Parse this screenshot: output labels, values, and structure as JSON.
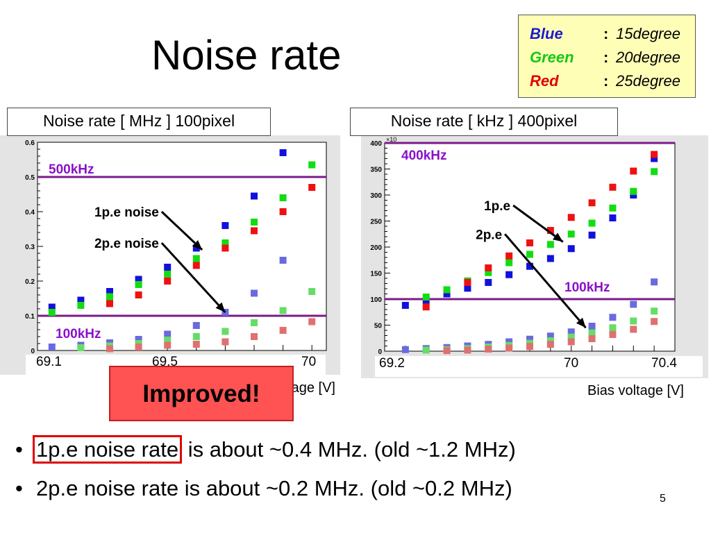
{
  "slide": {
    "title": "Noise rate",
    "page_number": "5",
    "improved_label": "Improved!",
    "legend": [
      {
        "key": "Blue",
        "sep": ":",
        "value": "15degree",
        "color": "#1a1ad0"
      },
      {
        "key": "Green",
        "sep": ":",
        "value": "20degree",
        "color": "#16c816"
      },
      {
        "key": "Red",
        "sep": ":",
        "value": "25degree",
        "color": "#e00000"
      }
    ],
    "bullets": [
      {
        "dot": "•",
        "highlight": "1p.e noise rate",
        "rest": " is about ~0.4 MHz. (old ~1.2 MHz)"
      },
      {
        "dot": "•",
        "text": "2p.e noise rate is about ~0.2 MHz. (old ~0.2 MHz)"
      }
    ],
    "colors": {
      "blue": "#1111dd",
      "green": "#11dd11",
      "red": "#ee1111",
      "blue_faint": "#6a6ae0",
      "green_faint": "#66dd66",
      "red_faint": "#e07070",
      "threshold": "#7a1a8a",
      "label": "#8a10c8"
    }
  },
  "chart_data": [
    {
      "type": "scatter",
      "caption": "Noise rate [ MHz ]  100pixel",
      "xlabel": "Bias voltage [V]",
      "x_tick_labels": [
        "69.1",
        "69.5",
        "70"
      ],
      "xlim": [
        69.05,
        70.05
      ],
      "ylim": [
        0,
        0.6
      ],
      "y_ticks": [
        "0",
        "0.1",
        "0.2",
        "0.3",
        "0.4",
        "0.5",
        "0.6"
      ],
      "x": [
        69.1,
        69.2,
        69.3,
        69.4,
        69.5,
        69.6,
        69.7,
        69.8,
        69.9,
        70.0
      ],
      "thresholds": [
        {
          "label": "500kHz",
          "y": 0.5
        },
        {
          "label": "100kHz",
          "y": 0.1
        }
      ],
      "annotations": [
        {
          "label": "1p.e noise",
          "from": [
            69.48,
            0.4
          ],
          "to": [
            69.62,
            0.29
          ]
        },
        {
          "label": "2p.e noise",
          "from": [
            69.48,
            0.31
          ],
          "to": [
            69.7,
            0.11
          ]
        }
      ],
      "series": [
        {
          "name": "Blue",
          "group": "1p.e",
          "values": [
            0.125,
            0.145,
            0.17,
            0.205,
            0.24,
            0.295,
            0.36,
            0.445,
            0.57,
            null
          ]
        },
        {
          "name": "Green",
          "group": "1p.e",
          "values": [
            0.11,
            0.13,
            0.155,
            0.19,
            0.22,
            0.265,
            0.31,
            0.37,
            0.44,
            0.535
          ]
        },
        {
          "name": "Red",
          "group": "1p.e",
          "values": [
            null,
            null,
            0.135,
            0.16,
            0.2,
            0.245,
            0.295,
            0.345,
            0.4,
            0.47
          ]
        },
        {
          "name": "Blue",
          "group": "2p.e",
          "values": [
            0.01,
            0.015,
            0.022,
            0.032,
            0.047,
            0.072,
            0.11,
            0.165,
            0.26,
            null
          ]
        },
        {
          "name": "Green",
          "group": "2p.e",
          "values": [
            null,
            0.008,
            0.013,
            0.02,
            0.03,
            0.04,
            0.055,
            0.08,
            0.115,
            0.17
          ]
        },
        {
          "name": "Red",
          "group": "2p.e",
          "values": [
            null,
            null,
            0.005,
            0.01,
            0.015,
            0.018,
            0.025,
            0.04,
            0.058,
            0.083
          ]
        }
      ]
    },
    {
      "type": "scatter",
      "caption": "Noise rate [ kHz ]  400pixel",
      "xlabel": "Bias voltage [V]",
      "x_tick_labels": [
        "69.2",
        "70",
        "70.4"
      ],
      "xlim": [
        69.1,
        70.5
      ],
      "ylim": [
        0,
        400
      ],
      "y_ticks": [
        "0",
        "50",
        "100",
        "150",
        "200",
        "250",
        "300",
        "350",
        "400"
      ],
      "y_exponent_label": "×10",
      "x": [
        69.2,
        69.3,
        69.4,
        69.5,
        69.6,
        69.7,
        69.8,
        69.9,
        70.0,
        70.1,
        70.2,
        70.3,
        70.4
      ],
      "thresholds": [
        {
          "label": "400kHz",
          "y": 400
        },
        {
          "label": "100kHz",
          "y": 100
        }
      ],
      "annotations": [
        {
          "label": "1p.e",
          "from": [
            69.72,
            280
          ],
          "to": [
            69.96,
            210
          ]
        },
        {
          "label": "2p.e",
          "from": [
            69.68,
            225
          ],
          "to": [
            70.07,
            45
          ]
        }
      ],
      "series": [
        {
          "name": "Blue",
          "group": "1p.e",
          "values": [
            88,
            97,
            110,
            121,
            132,
            147,
            163,
            178,
            197,
            223,
            256,
            300,
            370
          ]
        },
        {
          "name": "Green",
          "group": "1p.e",
          "values": [
            null,
            104,
            118,
            135,
            151,
            170,
            186,
            205,
            225,
            246,
            275,
            307,
            345
          ]
        },
        {
          "name": "Red",
          "group": "1p.e",
          "values": [
            null,
            85,
            null,
            132,
            160,
            183,
            208,
            232,
            257,
            285,
            315,
            346,
            378
          ]
        },
        {
          "name": "Blue",
          "group": "2p.e",
          "values": [
            3,
            5,
            7,
            10,
            13,
            18,
            23,
            29,
            37,
            48,
            65,
            90,
            133
          ]
        },
        {
          "name": "Green",
          "group": "2p.e",
          "values": [
            null,
            2,
            3,
            5,
            8,
            11,
            15,
            20,
            27,
            35,
            45,
            58,
            77
          ]
        },
        {
          "name": "Red",
          "group": "2p.e",
          "values": [
            null,
            null,
            1,
            2,
            4,
            6,
            9,
            13,
            18,
            24,
            32,
            42,
            57
          ]
        }
      ]
    }
  ]
}
